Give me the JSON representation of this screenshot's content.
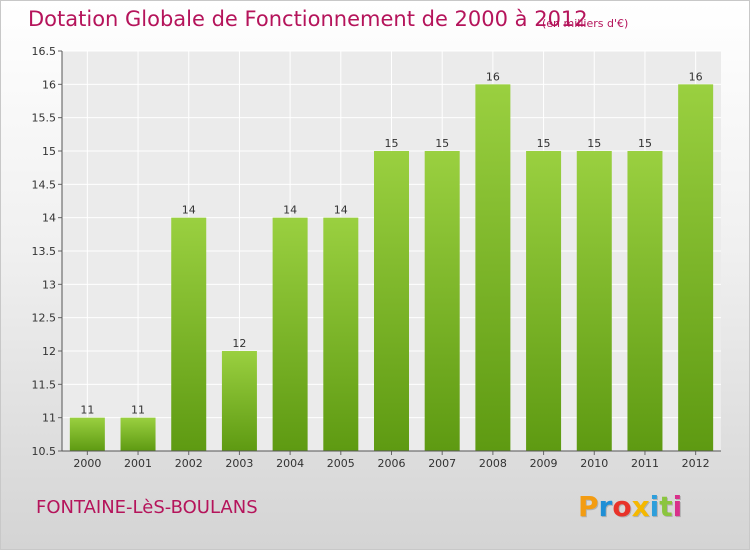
{
  "title": "Dotation Globale de Fonctionnement de 2000 à 2012",
  "subtitle": "(en milliers d'€)",
  "commune": "FONTAINE-LèS-BOULANS",
  "logo": {
    "letters": [
      "P",
      "r",
      "o",
      "x",
      "i",
      "t",
      "i"
    ],
    "colors": [
      "#f39c12",
      "#1f8fd6",
      "#e8332a",
      "#f5b800",
      "#2e9fdb",
      "#8bc53f",
      "#d9308b"
    ]
  },
  "colors": {
    "bar_top": "#9ad040",
    "bar_bottom": "#5e9a12",
    "title": "#b5145b",
    "plot_bg": "#ebebeb",
    "grid": "#ffffff"
  },
  "chart_data": {
    "type": "bar",
    "title": "Dotation Globale de Fonctionnement de 2000 à 2012",
    "subtitle": "(en milliers d'€)",
    "xlabel": "",
    "ylabel": "",
    "categories": [
      "2000",
      "2001",
      "2002",
      "2003",
      "2004",
      "2005",
      "2006",
      "2007",
      "2008",
      "2009",
      "2010",
      "2011",
      "2012"
    ],
    "values": [
      11,
      11,
      14,
      12,
      14,
      14,
      15,
      15,
      16,
      15,
      15,
      15,
      16
    ],
    "value_labels": [
      "11",
      "11",
      "14",
      "12",
      "14",
      "14",
      "15",
      "15",
      "16",
      "15",
      "15",
      "15",
      "16"
    ],
    "ylim": [
      10.5,
      16.5
    ],
    "yticks": [
      "10.5",
      "11",
      "11.5",
      "12",
      "12.5",
      "13",
      "13.5",
      "14",
      "14.5",
      "15",
      "15.5",
      "16",
      "16.5"
    ],
    "grid": true,
    "legend": "none"
  }
}
